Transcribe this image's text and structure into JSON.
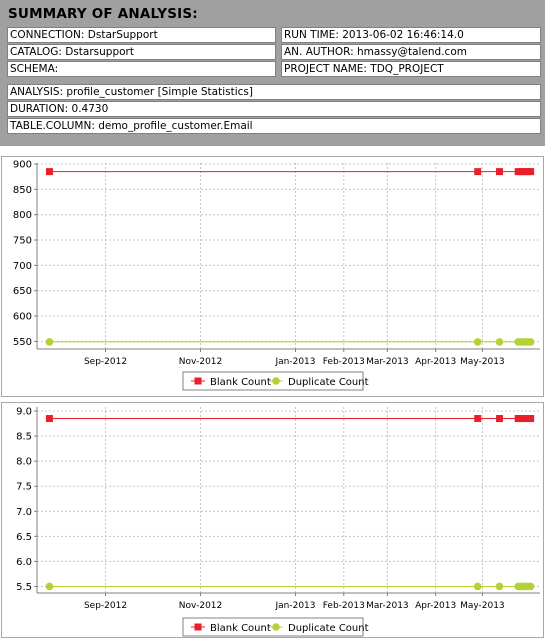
{
  "summary": {
    "title": "SUMMARY OF ANALYSIS:",
    "connection": "CONNECTION: DstarSupport",
    "catalog": "CATALOG: Dstarsupport",
    "schema": "SCHEMA:",
    "run_time": "RUN TIME: 2013-06-02 16:46:14.0",
    "author": "AN. AUTHOR: hmassy@talend.com",
    "project": "PROJECT NAME: TDQ_PROJECT",
    "analysis": "ANALYSIS: profile_customer [Simple Statistics]",
    "duration": "DURATION: 0.4730",
    "table_column": "TABLE.COLUMN: demo_profile_customer.Email"
  },
  "colors": {
    "blank": "#e8202a",
    "duplicate": "#b3d235",
    "summary_bg": "#a0a0a0"
  },
  "chart_data": [
    {
      "type": "line",
      "x_ticks": [
        "Sep-2012",
        "Nov-2012",
        "Jan-2013",
        "Feb-2013",
        "Mar-2013",
        "Apr-2013",
        "May-2013"
      ],
      "y_ticks": [
        "550",
        "600",
        "650",
        "700",
        "750",
        "800",
        "850",
        "900"
      ],
      "ylim": [
        535,
        902
      ],
      "x": [
        "2012-07-27",
        "2013-04-28",
        "2013-05-12",
        "2013-05-24",
        "2013-05-26",
        "2013-05-28",
        "2013-05-30",
        "2013-06-01"
      ],
      "series": [
        {
          "name": "Blank Count",
          "marker": "square",
          "values": [
            885,
            885,
            885,
            885,
            885,
            885,
            885,
            885
          ]
        },
        {
          "name": "Duplicate Count",
          "marker": "circle",
          "values": [
            549,
            549,
            549,
            549,
            549,
            549,
            549,
            549
          ]
        }
      ],
      "grid": true,
      "legend": "bottom-center"
    },
    {
      "type": "line",
      "x_ticks": [
        "Sep-2012",
        "Nov-2012",
        "Jan-2013",
        "Feb-2013",
        "Mar-2013",
        "Apr-2013",
        "May-2013"
      ],
      "y_ticks": [
        "5.5",
        "6.0",
        "6.5",
        "7.0",
        "7.5",
        "8.0",
        "8.5",
        "9.0"
      ],
      "ylim": [
        5.37,
        9.08
      ],
      "x": [
        "2012-07-27",
        "2013-04-28",
        "2013-05-12",
        "2013-05-24",
        "2013-05-26",
        "2013-05-28",
        "2013-05-30",
        "2013-06-01"
      ],
      "series": [
        {
          "name": "Blank Count",
          "marker": "square",
          "values": [
            8.85,
            8.85,
            8.85,
            8.85,
            8.85,
            8.85,
            8.85,
            8.85
          ]
        },
        {
          "name": "Duplicate Count",
          "marker": "circle",
          "values": [
            5.5,
            5.5,
            5.5,
            5.5,
            5.5,
            5.5,
            5.5,
            5.5
          ]
        }
      ],
      "grid": true,
      "legend": "bottom-center"
    }
  ]
}
